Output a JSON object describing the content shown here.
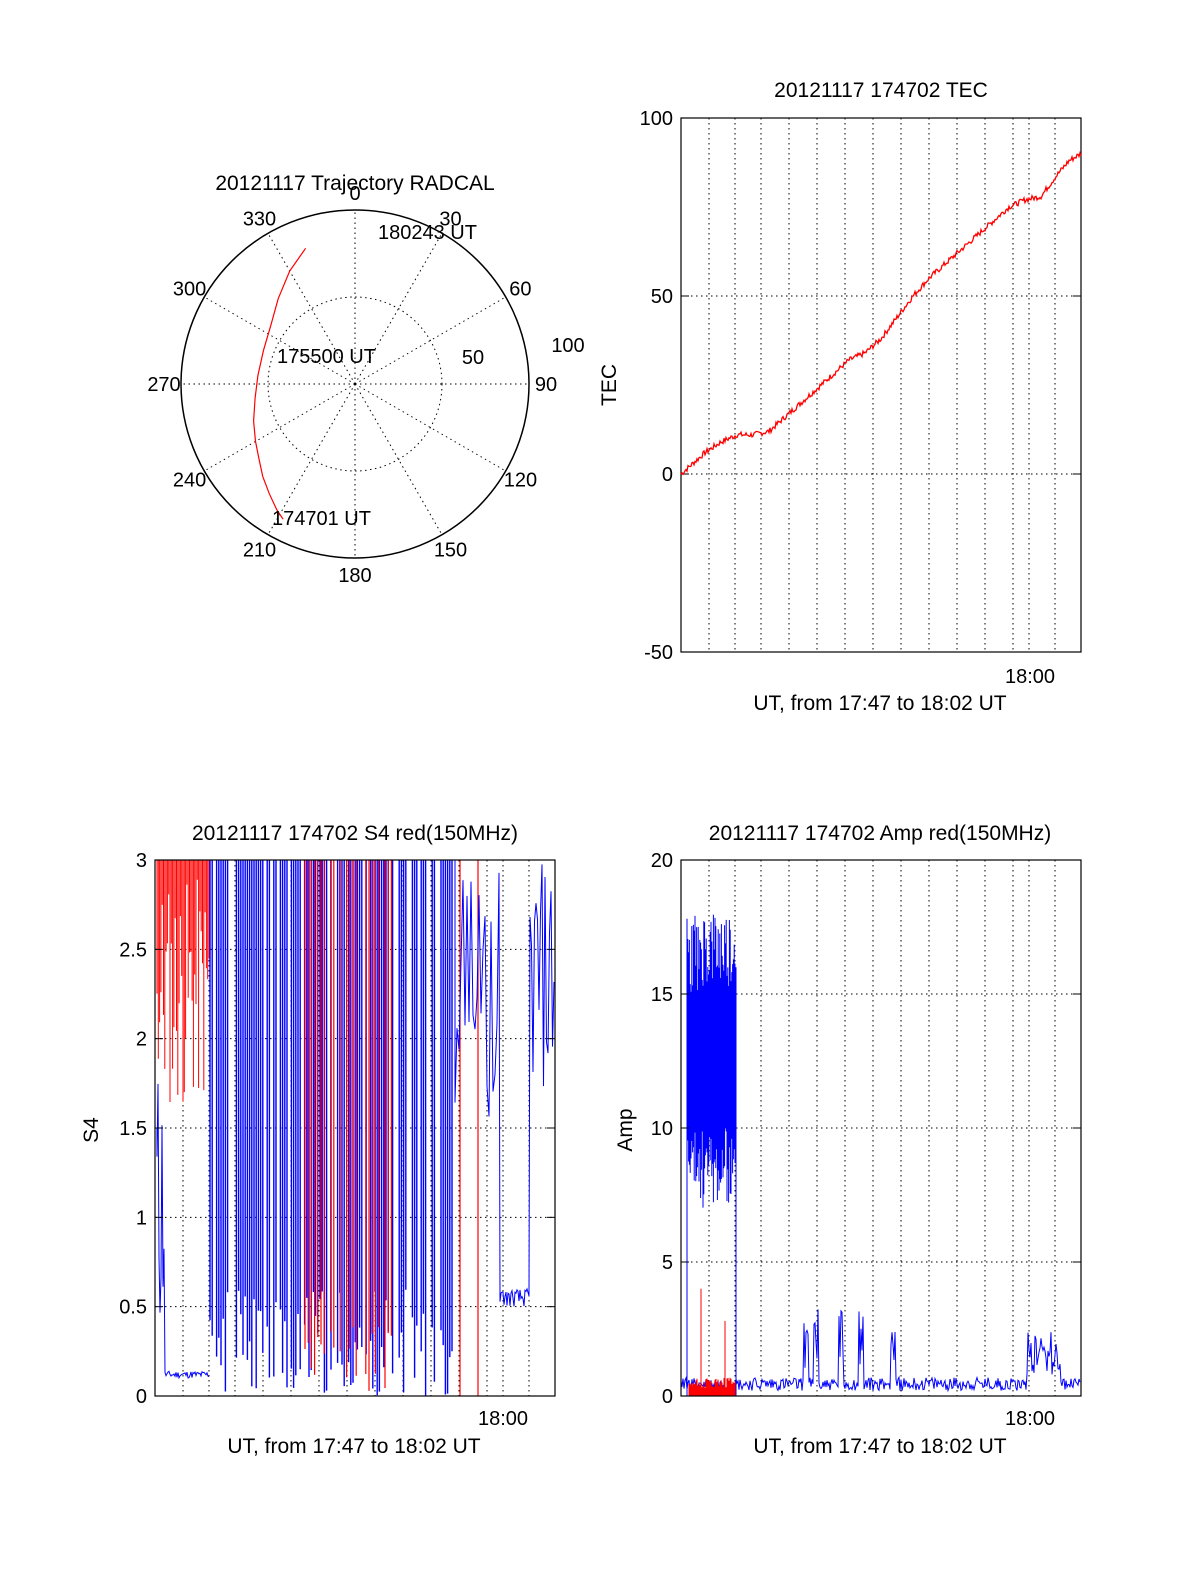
{
  "chart_data": [
    {
      "type": "polar",
      "title": "20121117 Trajectory RADCAL",
      "angle_labels": [
        "0",
        "30",
        "60",
        "90",
        "120",
        "150",
        "180",
        "210",
        "240",
        "270",
        "300",
        "330"
      ],
      "radial_labels": [
        "50",
        "100"
      ],
      "rlim": [
        0,
        100
      ],
      "grid": true,
      "series": [
        {
          "color": "#ff0000",
          "azimuth": [
            208,
            212,
            218,
            225,
            232,
            240,
            250,
            262,
            275,
            290,
            305,
            318,
            330,
            340
          ],
          "zenith": [
            88,
            85,
            80,
            75,
            70,
            66,
            62,
            58,
            56,
            56,
            59,
            66,
            75,
            83
          ]
        }
      ],
      "annotations": [
        "174701 UT",
        "175500 UT",
        "180243 UT"
      ]
    },
    {
      "type": "line",
      "title": "20121117 174702 TEC",
      "ylabel": "TEC",
      "xlabel": "UT, from 17:47 to 18:02 UT",
      "xtick_labels": [
        "18:00"
      ],
      "ytick_labels": [
        "-50",
        "0",
        "50",
        "100"
      ],
      "ylim": [
        -50,
        100
      ],
      "grid": true,
      "series": [
        {
          "color": "#ff0000",
          "t": [
            0.0,
            0.02,
            0.06,
            0.1,
            0.14,
            0.18,
            0.22,
            0.26,
            0.3,
            0.34,
            0.38,
            0.42,
            0.46,
            0.5,
            0.54,
            0.58,
            0.62,
            0.66,
            0.7,
            0.74,
            0.78,
            0.82,
            0.86,
            0.9,
            0.94,
            0.97,
            1.0
          ],
          "y": [
            0,
            2,
            6,
            9,
            11,
            11,
            12,
            16,
            20,
            24,
            28,
            32,
            34,
            38,
            44,
            50,
            55,
            59,
            63,
            67,
            71,
            75,
            77,
            78,
            84,
            88,
            90
          ]
        }
      ]
    },
    {
      "type": "line",
      "title": "20121117 174702 S4 red(150MHz)",
      "ylabel": "S4",
      "xlabel": "UT, from 17:47 to 18:02 UT",
      "xtick_labels": [
        "18:00"
      ],
      "ytick_labels": [
        "0",
        "0.5",
        "1",
        "1.5",
        "2",
        "2.5",
        "3"
      ],
      "ylim": [
        0,
        3
      ],
      "grid": true,
      "series": [
        {
          "color": "#0000ff"
        },
        {
          "color": "#ff0000"
        }
      ]
    },
    {
      "type": "line",
      "title": "20121117 174702 Amp red(150MHz)",
      "ylabel": "Amp",
      "xlabel": "UT, from 17:47 to 18:02 UT",
      "xtick_labels": [
        "18:00"
      ],
      "ytick_labels": [
        "0",
        "5",
        "10",
        "15",
        "20"
      ],
      "ylim": [
        0,
        20
      ],
      "grid": true,
      "series": [
        {
          "color": "#0000ff"
        },
        {
          "color": "#ff0000"
        }
      ]
    }
  ]
}
